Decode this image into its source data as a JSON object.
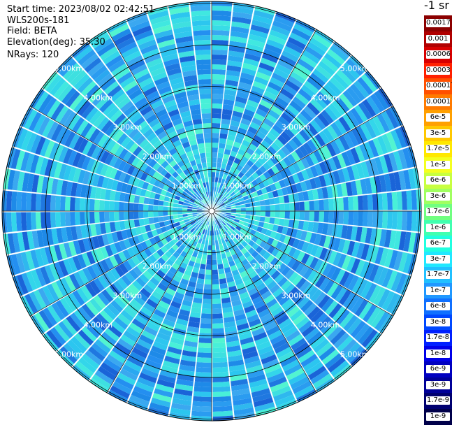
{
  "info": {
    "start_time_label": "Start time:",
    "start_time": "2023/08/02 02:42:51",
    "instrument": "WLS200s-181",
    "field_label": "Field:",
    "field": "BETA",
    "elevation_label": "Elevation(deg):",
    "elevation": "35.30",
    "nrays_label": "NRays:",
    "nrays": "120"
  },
  "chart_data": {
    "type": "heatmap",
    "projection": "polar-ppi",
    "field": "BETA",
    "ring_labels": [
      "1.00km",
      "2.00km",
      "3.00km",
      "4.00km",
      "5.00km"
    ],
    "ring_values_km": [
      1,
      2,
      3,
      4,
      5
    ],
    "max_range_km": 5.1,
    "n_rays": 120,
    "radial_lines": 12,
    "colorbar": {
      "unit": "-1 sr",
      "scale": "log",
      "labels": [
        "0.0017",
        "0.001",
        "0.0006",
        "0.0003",
        "0.00017",
        "0.0001",
        "6e-5",
        "3e-5",
        "1.7e-5",
        "1e-5",
        "6e-6",
        "3e-6",
        "1.7e-6",
        "1e-6",
        "6e-7",
        "3e-7",
        "1.7e-7",
        "1e-7",
        "6e-8",
        "3e-8",
        "1.7e-8",
        "1e-8",
        "6e-9",
        "3e-9",
        "1.7e-9",
        "1e-9"
      ],
      "colors": [
        "#8b0000",
        "#b00000",
        "#d80000",
        "#ff2000",
        "#ff5000",
        "#ff7a00",
        "#ffa000",
        "#ffc800",
        "#ffe800",
        "#f4ff20",
        "#c8ff40",
        "#a0ff60",
        "#70ff80",
        "#40ffb0",
        "#20ffe0",
        "#20e8ff",
        "#20c0ff",
        "#2098ff",
        "#1070ff",
        "#0048ff",
        "#0020ff",
        "#0000e8",
        "#0000c0",
        "#000098",
        "#000070",
        "#00004a"
      ]
    },
    "dominant_values": {
      "near_center": "1.7e-7",
      "mid_range": "3e-8",
      "far_range": "6e-8"
    }
  }
}
